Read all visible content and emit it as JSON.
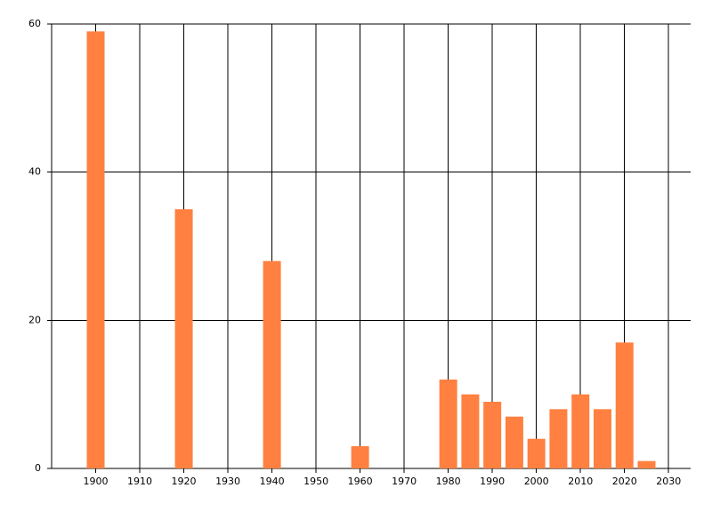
{
  "chart_data": {
    "type": "bar",
    "x": [
      1900,
      1920,
      1940,
      1960,
      1980,
      1985,
      1990,
      1995,
      2000,
      2005,
      2010,
      2015,
      2020,
      2025
    ],
    "values": [
      59,
      35,
      28,
      3,
      12,
      10,
      9,
      7,
      4,
      8,
      10,
      8,
      17,
      1
    ],
    "color": "#ff8040",
    "xlim": [
      1890,
      2035
    ],
    "xticks": [
      1900,
      1910,
      1920,
      1930,
      1940,
      1950,
      1960,
      1970,
      1980,
      1990,
      2000,
      2010,
      2020,
      2030
    ],
    "ylim": [
      0,
      60
    ],
    "yticks": [
      0,
      20,
      40,
      60
    ],
    "grid": true
  }
}
